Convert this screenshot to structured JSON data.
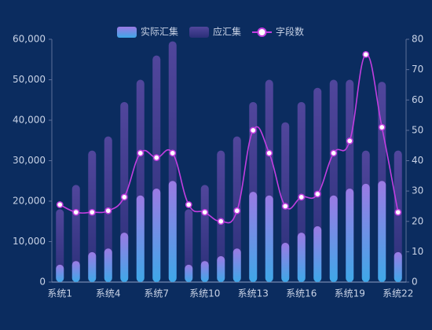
{
  "chart_data": {
    "type": "bar-line",
    "categories": [
      "系统1",
      null,
      null,
      "系统4",
      null,
      null,
      "系统7",
      null,
      null,
      "系统10",
      null,
      null,
      "系统13",
      null,
      null,
      "系统16",
      null,
      null,
      "系统19",
      null,
      null,
      "系统22"
    ],
    "series": [
      {
        "name": "实际汇集",
        "type": "bar",
        "color": [
          "#9b7ae4",
          "#3ea8e8"
        ],
        "values": [
          4300,
          5200,
          7400,
          8300,
          12200,
          21400,
          23100,
          25000,
          4300,
          5200,
          6400,
          8300,
          22300,
          21400,
          9700,
          12200,
          13800,
          21400,
          23100,
          24300,
          25000,
          7400
        ]
      },
      {
        "name": "应汇集",
        "type": "bar",
        "color": [
          "#51469c",
          "#2a2f78"
        ],
        "values": [
          18000,
          24000,
          32500,
          36000,
          44500,
          50000,
          56000,
          59500,
          18000,
          24000,
          32500,
          36000,
          44500,
          50000,
          39500,
          44500,
          48000,
          50000,
          50000,
          32500,
          49500,
          32500
        ]
      },
      {
        "name": "字段数",
        "type": "line",
        "axis": "y2",
        "color": "#c23ee0",
        "values": [
          25.5,
          23,
          23,
          23.5,
          28,
          42.5,
          41,
          42.5,
          25.5,
          23,
          20,
          23.5,
          50,
          42.5,
          25,
          28,
          29,
          42.5,
          46.5,
          75,
          51,
          23
        ]
      }
    ],
    "ylim": [
      0,
      60000
    ],
    "yticks": [
      0,
      {
        "value": 10000,
        "label": "10,000"
      },
      {
        "value": 20000,
        "label": "20,000"
      },
      {
        "value": 30000,
        "label": "30,000"
      },
      {
        "value": 40000,
        "label": "40,000"
      },
      {
        "value": 50000,
        "label": "50,000"
      },
      {
        "value": 60000,
        "label": "60,000"
      }
    ],
    "y2lim": [
      0,
      80
    ],
    "y2ticks": [
      0,
      10,
      20,
      30,
      40,
      50,
      60,
      70,
      80
    ],
    "grid": false,
    "legend": "top"
  }
}
